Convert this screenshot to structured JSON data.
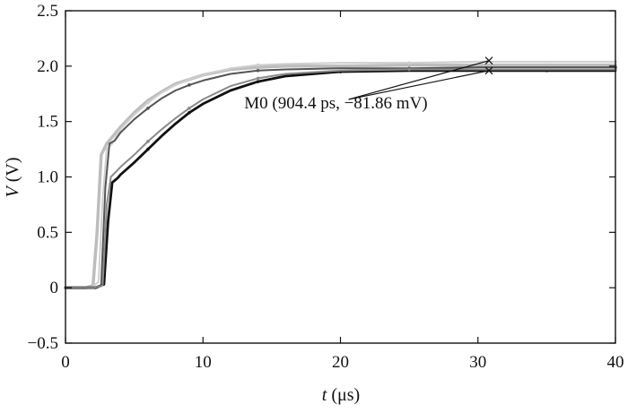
{
  "chart_data": {
    "type": "line",
    "xlabel_italic": "t",
    "xlabel_rest": " (μs)",
    "ylabel_italic": "V",
    "ylabel_rest": " (V)",
    "xlim": [
      0,
      40
    ],
    "ylim": [
      -0.5,
      2.5
    ],
    "xticks": [
      0,
      10,
      20,
      30,
      40
    ],
    "xtick_labels": [
      "0",
      "10",
      "20",
      "30",
      "40"
    ],
    "yticks": [
      -0.5,
      0,
      0.5,
      1.0,
      1.5,
      2.0,
      2.5
    ],
    "ytick_labels": [
      "−0.5",
      "0",
      "0.5",
      "1.0",
      "1.5",
      "2.0",
      "2.5"
    ],
    "grid": false,
    "annotation": {
      "text": "M0 (904.4 ps, −81.86 mV)",
      "text_anchor": [
        13.0,
        1.62
      ],
      "targets": [
        [
          30.8,
          2.05
        ],
        [
          30.8,
          1.96
        ]
      ]
    },
    "series": [
      {
        "color": "#bdbdbd",
        "x": [
          0,
          1.5,
          2.0,
          2.3,
          2.6,
          3.0,
          4,
          5,
          6,
          7,
          8,
          9,
          10,
          12,
          14,
          16,
          18,
          20,
          25,
          30,
          35,
          40
        ],
        "y": [
          0,
          0,
          0.02,
          0.5,
          1.2,
          1.3,
          1.45,
          1.58,
          1.69,
          1.77,
          1.84,
          1.88,
          1.92,
          1.97,
          1.99,
          2.0,
          2.0,
          2.0,
          2.01,
          2.01,
          2.01,
          2.01
        ]
      },
      {
        "color": "#cfcfcf",
        "x": [
          0,
          1.8,
          2.4,
          2.7,
          3.0,
          3.4,
          4,
          5,
          6,
          7,
          8,
          9,
          10,
          12,
          14,
          16,
          20,
          25,
          30,
          35,
          40
        ],
        "y": [
          0,
          0,
          0.05,
          0.8,
          1.25,
          1.3,
          1.43,
          1.56,
          1.67,
          1.76,
          1.83,
          1.88,
          1.92,
          1.98,
          2.01,
          2.02,
          2.03,
          2.03,
          2.04,
          2.04,
          2.04
        ]
      },
      {
        "color": "#555555",
        "x": [
          0,
          2.0,
          2.6,
          2.9,
          3.2,
          3.6,
          4,
          5,
          6,
          7,
          8,
          9,
          10,
          12,
          14,
          16,
          20,
          25,
          30,
          35,
          40
        ],
        "y": [
          0,
          0,
          0.02,
          0.9,
          1.3,
          1.33,
          1.4,
          1.52,
          1.62,
          1.71,
          1.78,
          1.83,
          1.87,
          1.93,
          1.96,
          1.97,
          1.98,
          1.98,
          1.99,
          1.99,
          1.99
        ]
      },
      {
        "color": "#111111",
        "x": [
          0,
          2.2,
          2.8,
          3.1,
          3.4,
          3.8,
          4,
          5,
          6,
          7,
          8,
          9,
          10,
          12,
          14,
          16,
          18,
          20,
          25,
          30,
          35,
          40
        ],
        "y": [
          0,
          0,
          0.03,
          0.6,
          0.95,
          0.99,
          1.02,
          1.13,
          1.25,
          1.37,
          1.48,
          1.58,
          1.66,
          1.78,
          1.86,
          1.91,
          1.93,
          1.95,
          1.96,
          1.96,
          1.96,
          1.96
        ]
      },
      {
        "color": "#8a8a8a",
        "x": [
          0,
          2.1,
          2.7,
          3.0,
          3.3,
          3.7,
          4,
          5,
          6,
          7,
          8,
          9,
          10,
          12,
          14,
          16,
          20,
          25,
          30,
          35,
          40
        ],
        "y": [
          0,
          0,
          0.02,
          0.75,
          1.0,
          1.05,
          1.09,
          1.2,
          1.32,
          1.43,
          1.53,
          1.62,
          1.7,
          1.82,
          1.89,
          1.93,
          1.96,
          1.97,
          1.97,
          1.97,
          1.97
        ]
      }
    ]
  }
}
